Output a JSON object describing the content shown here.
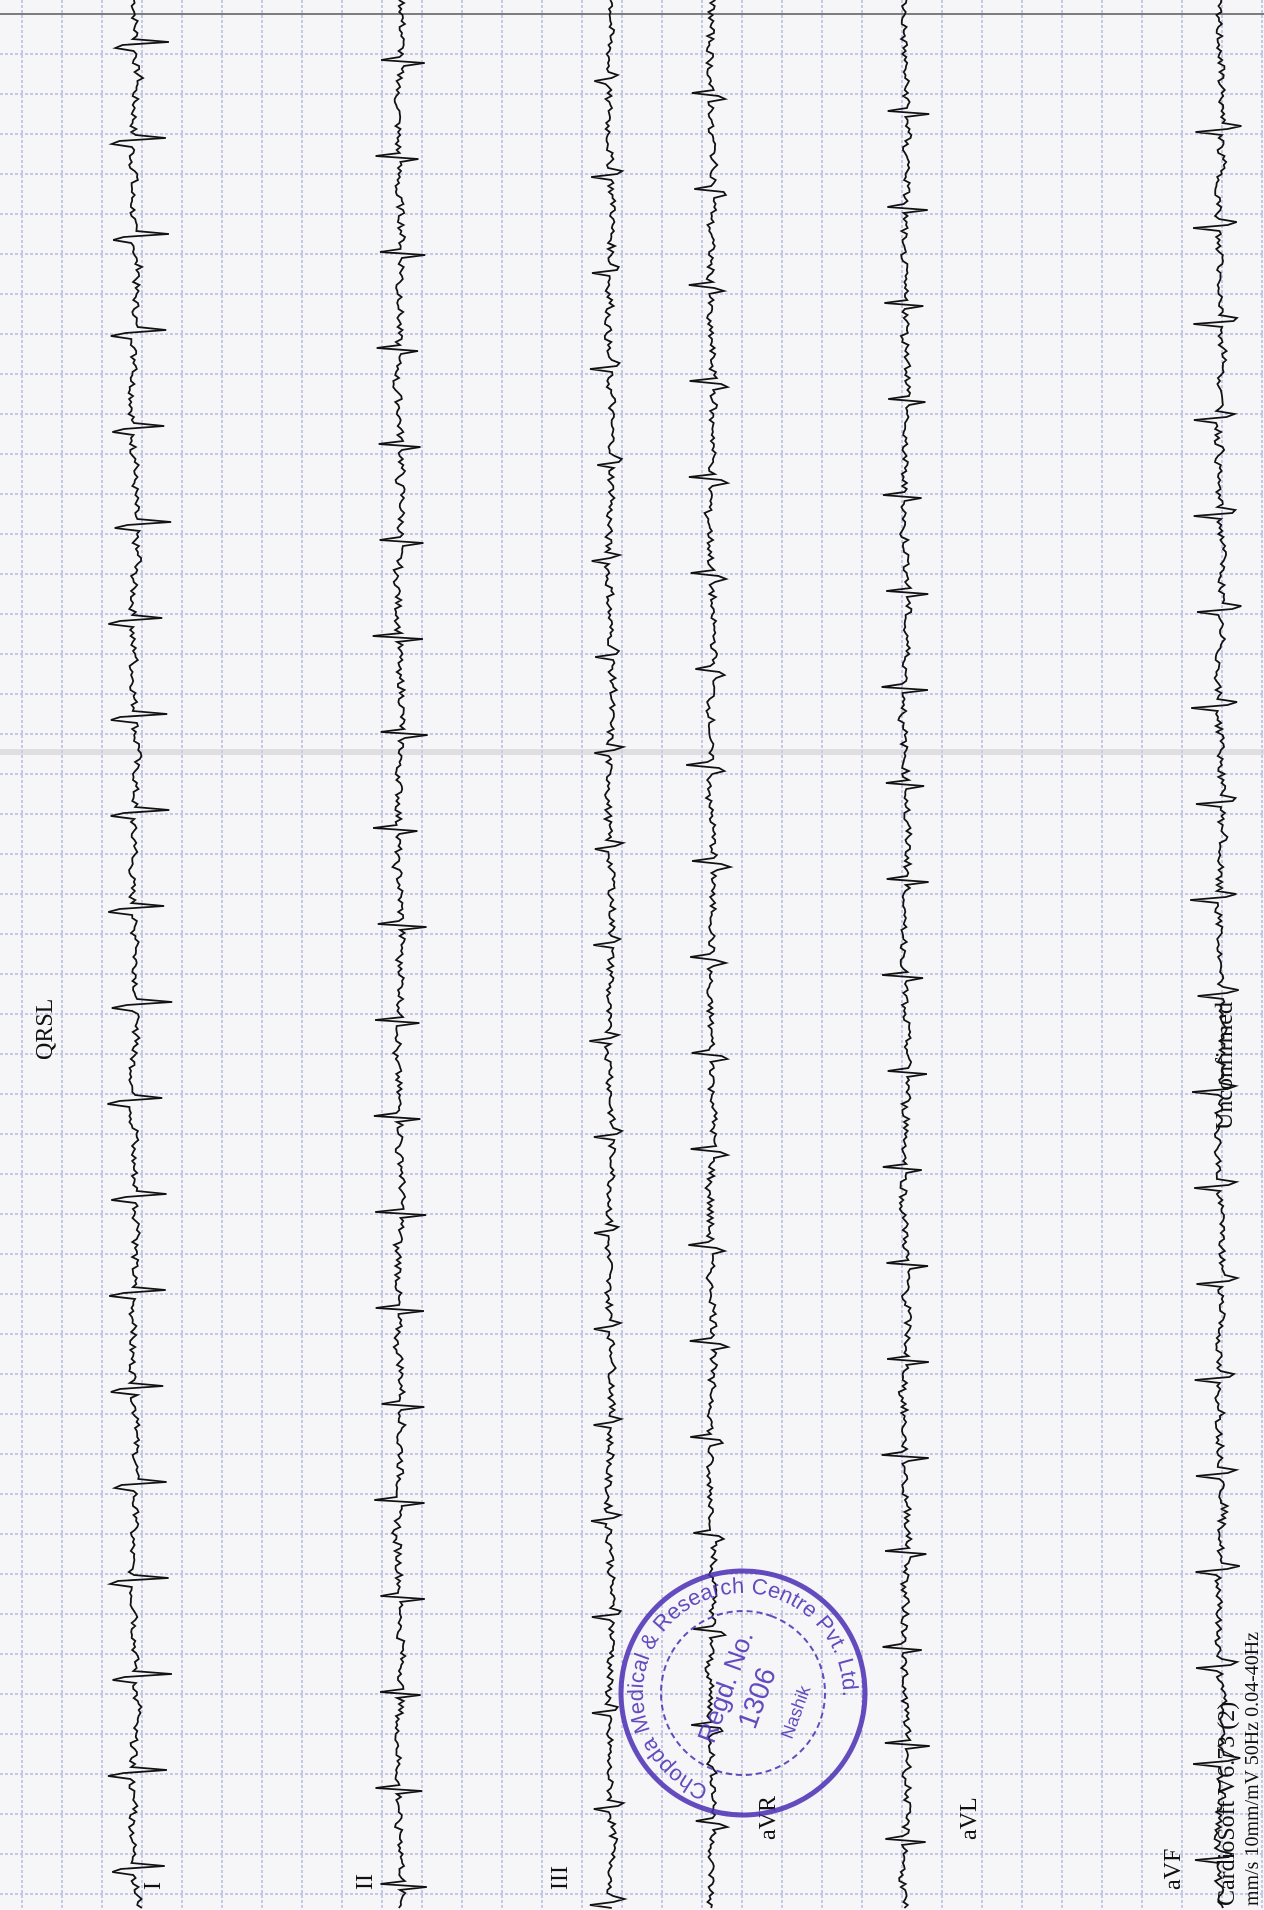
{
  "header": {
    "title": "QRSL",
    "status": "Unconfirmed"
  },
  "leads": [
    "I",
    "II",
    "III",
    "aVR",
    "aVL",
    "aVF"
  ],
  "footer": {
    "software": "CardioSoft V6.73 (2)",
    "settings": "mm/s 10mm/mV 50Hz 0.04-40Hz"
  },
  "stamp": {
    "ring": "Chopda Medical & Research Centre Pvt. Ltd.",
    "regd": "Regd. No.",
    "number": "1306",
    "city": "Nashik"
  }
}
